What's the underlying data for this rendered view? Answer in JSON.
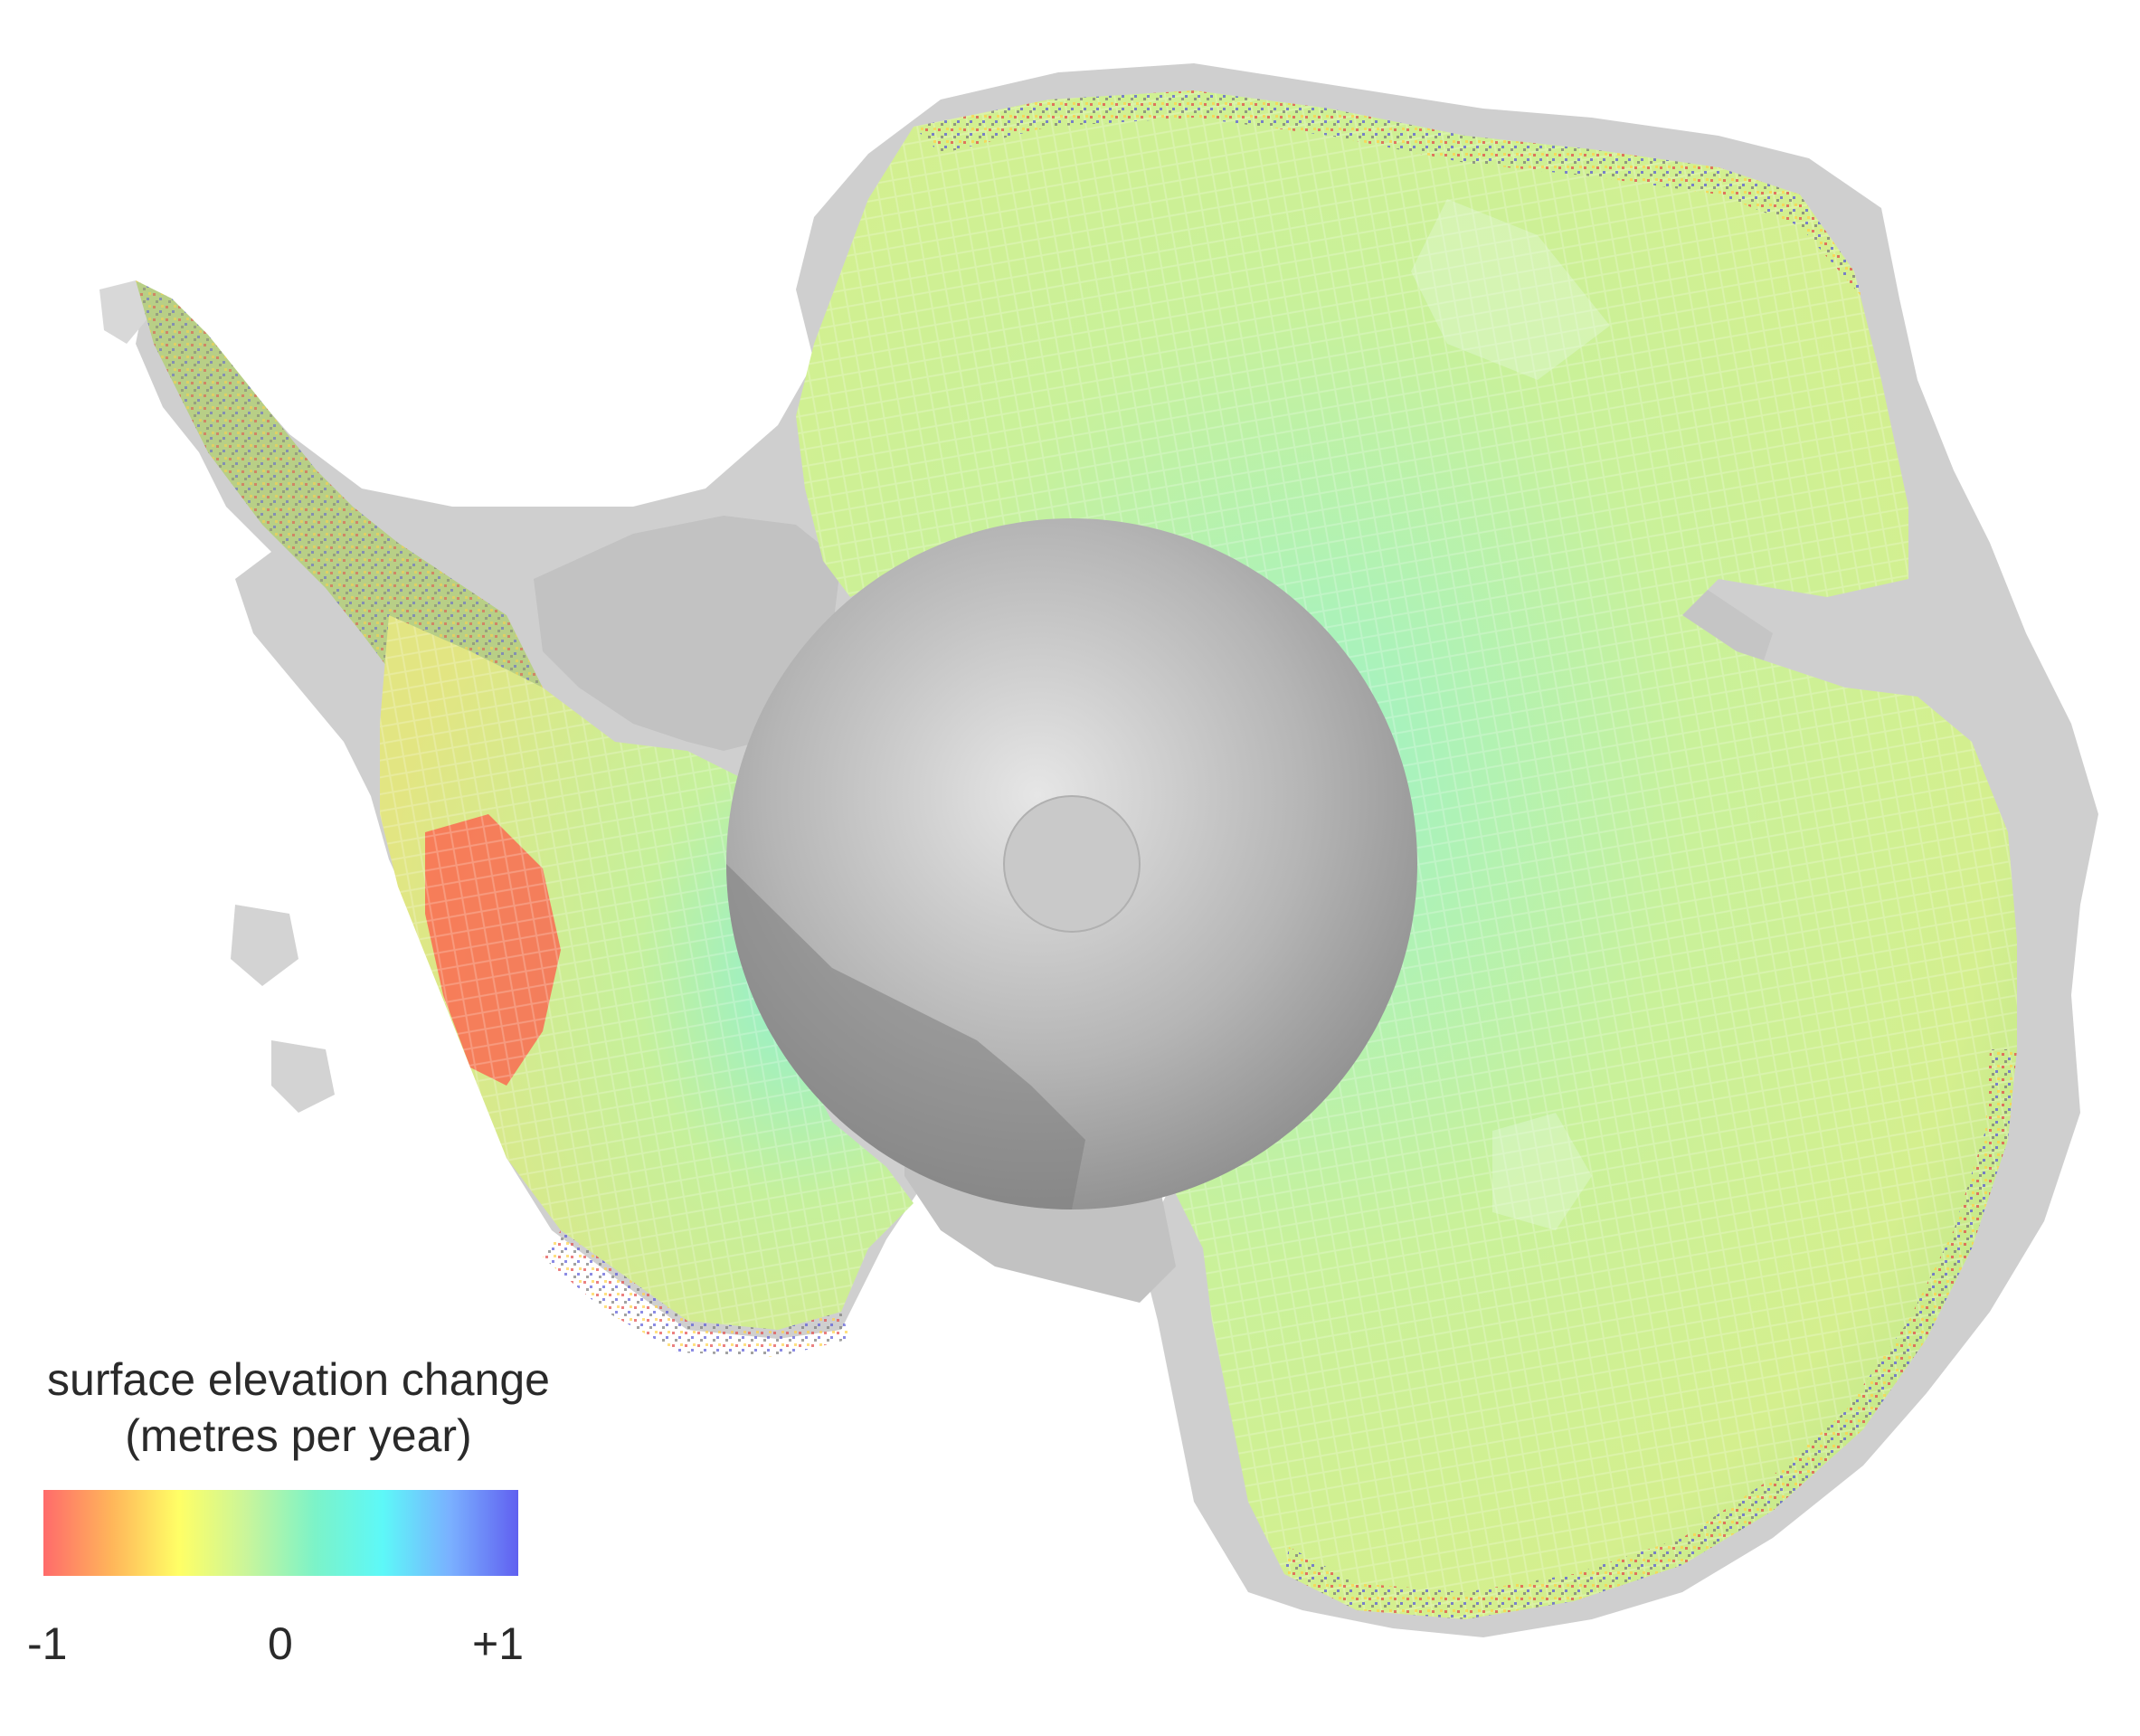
{
  "map": {
    "subject": "Antarctica",
    "colors": {
      "ice_shelf_gray": "#c8c8c8",
      "polar_gap_gray": "#9a9a9a",
      "decrease": "#ff5a5a",
      "stable": "#c7f59a",
      "increase": "#6666ff"
    }
  },
  "legend": {
    "title_line1": "surface elevation change",
    "title_line2": "(metres per year)",
    "colorbar_stops": [
      "#ff6b6b",
      "#ffb55a",
      "#ffff66",
      "#c9f59b",
      "#7cf3c8",
      "#5df8f8",
      "#7ab0ff",
      "#6060f0"
    ],
    "min_label": "-1",
    "mid_label": "0",
    "max_label": "+1",
    "scale": {
      "min": -1,
      "mid": 0,
      "max": 1
    }
  }
}
